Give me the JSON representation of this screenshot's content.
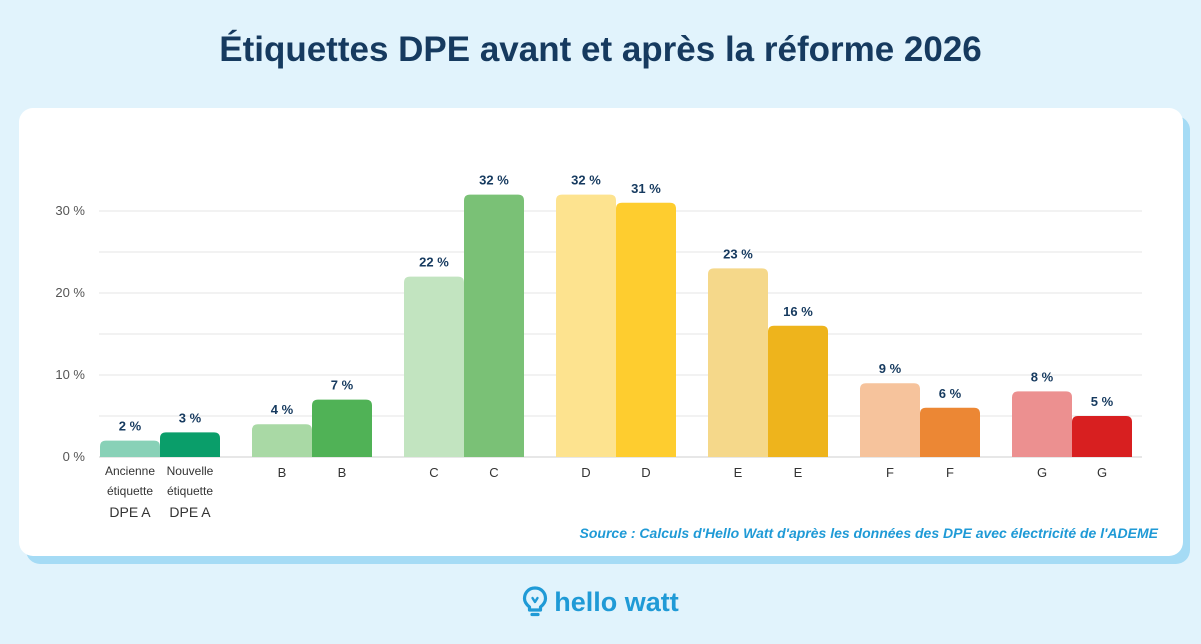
{
  "title": "Étiquettes DPE avant et après la réforme 2026",
  "source": "Source : Calculs d'Hello Watt d'après les données des DPE avec électricité de l'ADEME",
  "logo": {
    "text": "hello watt",
    "icon": "lightbulb-icon"
  },
  "chart_data": {
    "type": "bar",
    "title": "Étiquettes DPE avant et après la réforme 2026",
    "xlabel": "",
    "ylabel": "",
    "ylim": [
      0,
      33
    ],
    "y_ticks": [
      0,
      10,
      20,
      30
    ],
    "y_tick_labels": [
      "0 %",
      "10 %",
      "20 %",
      "30 %"
    ],
    "grid": true,
    "groups": [
      {
        "labels": [
          [
            "Ancienne",
            "étiquette",
            "DPE A"
          ],
          [
            "Nouvelle",
            "étiquette",
            "DPE A"
          ]
        ],
        "values": [
          2,
          3
        ],
        "value_labels": [
          "2 %",
          "3 %"
        ],
        "colors": [
          "#88d1b7",
          "#0a9e6a"
        ]
      },
      {
        "labels": [
          [
            "B"
          ],
          [
            "B"
          ]
        ],
        "values": [
          4,
          7
        ],
        "value_labels": [
          "4 %",
          "7 %"
        ],
        "colors": [
          "#a9d9a5",
          "#50b256"
        ]
      },
      {
        "labels": [
          [
            "C"
          ],
          [
            "C"
          ]
        ],
        "values": [
          22,
          32
        ],
        "value_labels": [
          "22 %",
          "32 %"
        ],
        "colors": [
          "#c2e4c0",
          "#7ac176"
        ]
      },
      {
        "labels": [
          [
            "D"
          ],
          [
            "D"
          ]
        ],
        "values": [
          32,
          31
        ],
        "value_labels": [
          "32 %",
          "31 %"
        ],
        "colors": [
          "#fde38f",
          "#fecd2f"
        ]
      },
      {
        "labels": [
          [
            "E"
          ],
          [
            "E"
          ]
        ],
        "values": [
          23,
          16
        ],
        "value_labels": [
          "23 %",
          "16 %"
        ],
        "colors": [
          "#f5d88a",
          "#eeb41c"
        ]
      },
      {
        "labels": [
          [
            "F"
          ],
          [
            "F"
          ]
        ],
        "values": [
          9,
          6
        ],
        "value_labels": [
          "9 %",
          "6 %"
        ],
        "colors": [
          "#f6c39c",
          "#ec8734"
        ]
      },
      {
        "labels": [
          [
            "G"
          ],
          [
            "G"
          ]
        ],
        "values": [
          8,
          5
        ],
        "value_labels": [
          "8 %",
          "5 %"
        ],
        "colors": [
          "#ec9090",
          "#d81f20"
        ]
      }
    ]
  }
}
